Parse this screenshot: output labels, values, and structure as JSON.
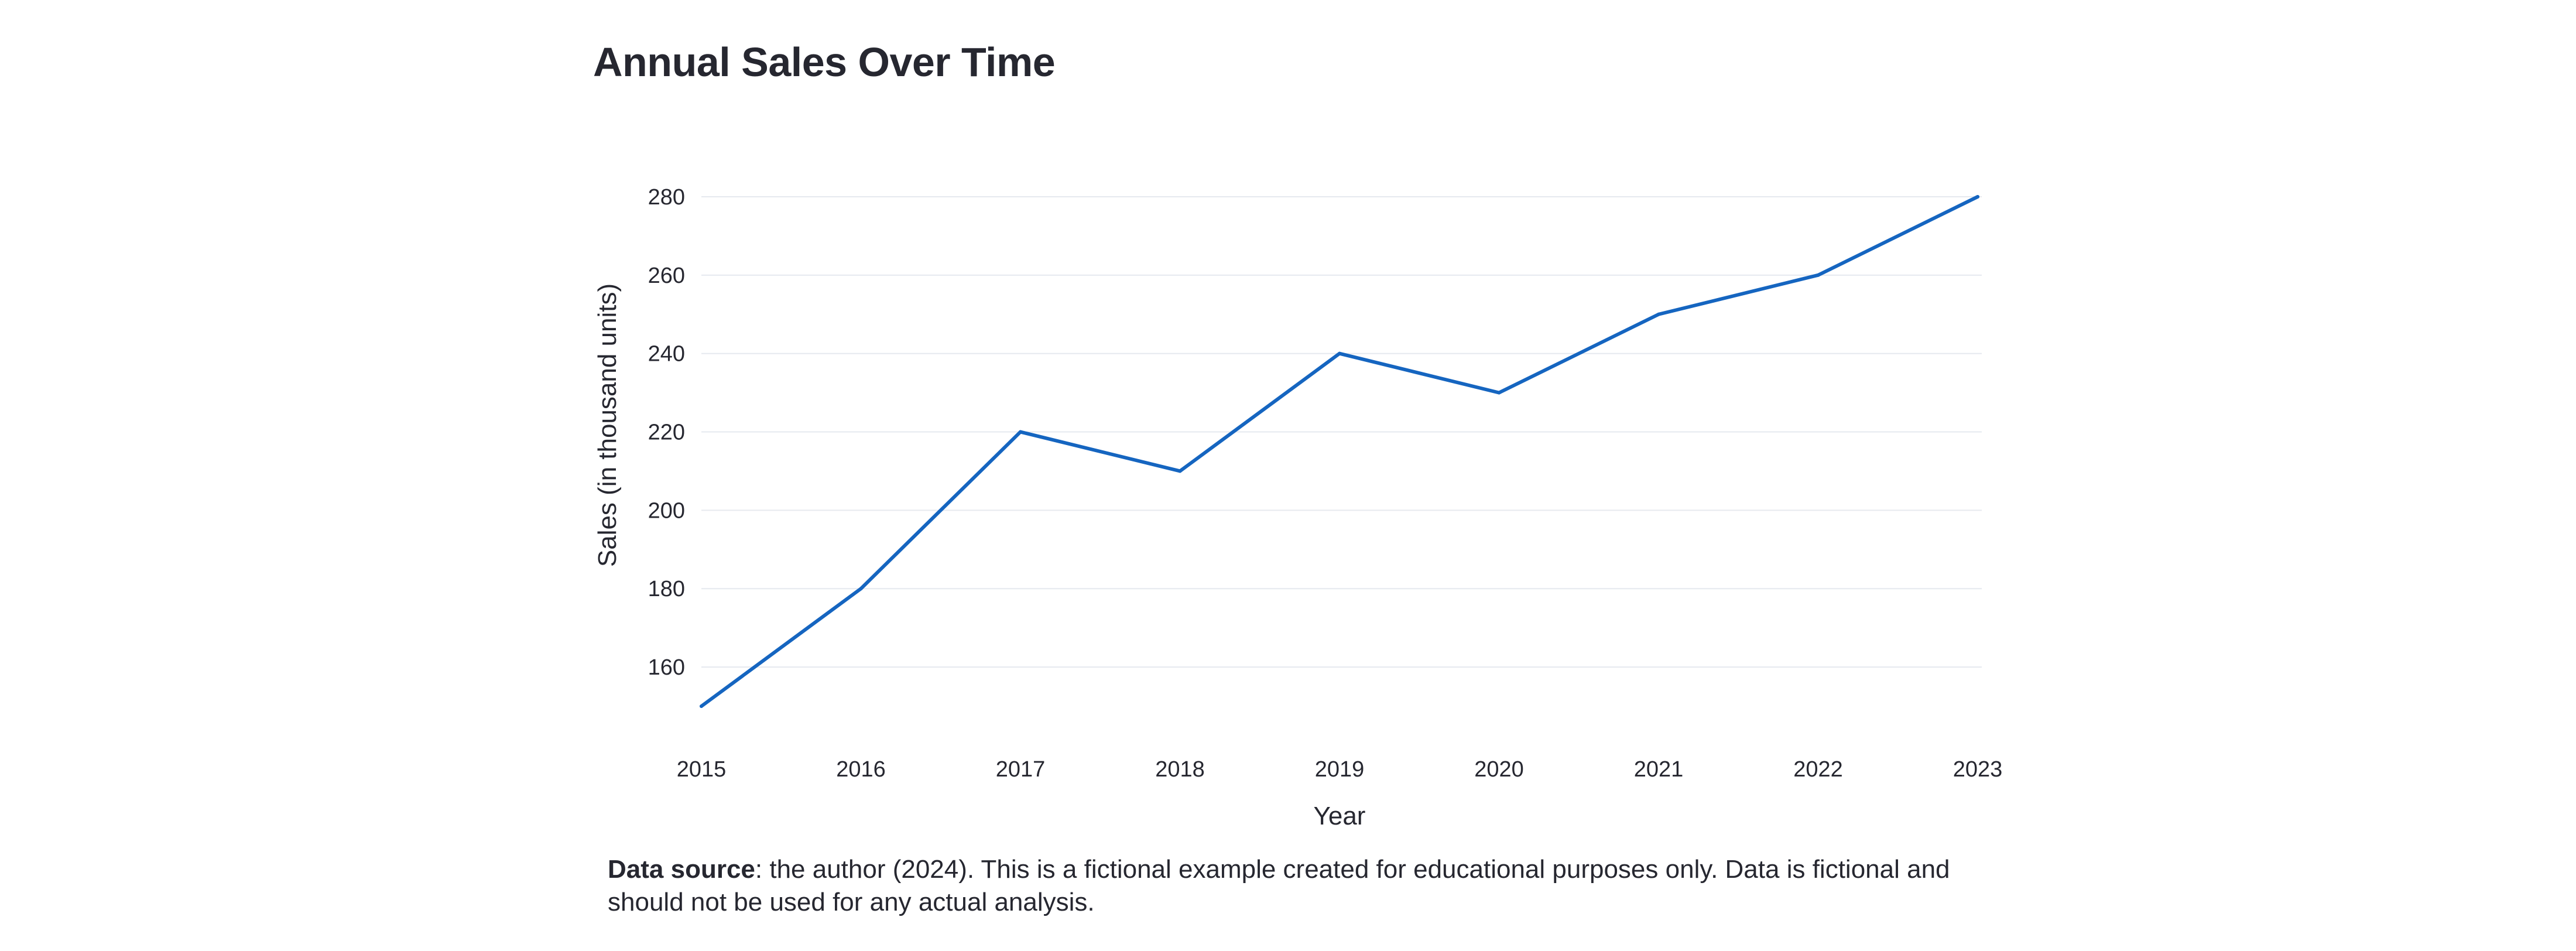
{
  "page": {
    "caption_strong": "Data source",
    "caption_text": ": the author (2024). This is a fictional example created for educational purposes only. Data is fictional and should not be used for any actual analysis."
  },
  "colors": {
    "line": "#1565c0",
    "grid": "#e6e9ef",
    "text": "#262730"
  },
  "chart_data": {
    "type": "line",
    "title": "Annual Sales Over Time",
    "xlabel": "Year",
    "ylabel": "Sales (in thousand units)",
    "x": [
      2015,
      2016,
      2017,
      2018,
      2019,
      2020,
      2021,
      2022,
      2023
    ],
    "series": [
      {
        "values": [
          150,
          180,
          220,
          210,
          240,
          230,
          250,
          260,
          280
        ]
      }
    ],
    "ylim": [
      150,
      280
    ],
    "yticks": [
      160,
      180,
      200,
      220,
      240,
      260,
      280
    ],
    "xticks": [
      "2015",
      "2016",
      "2017",
      "2018",
      "2019",
      "2020",
      "2021",
      "2022",
      "2023"
    ],
    "grid": "horizontal",
    "legend": "none"
  }
}
